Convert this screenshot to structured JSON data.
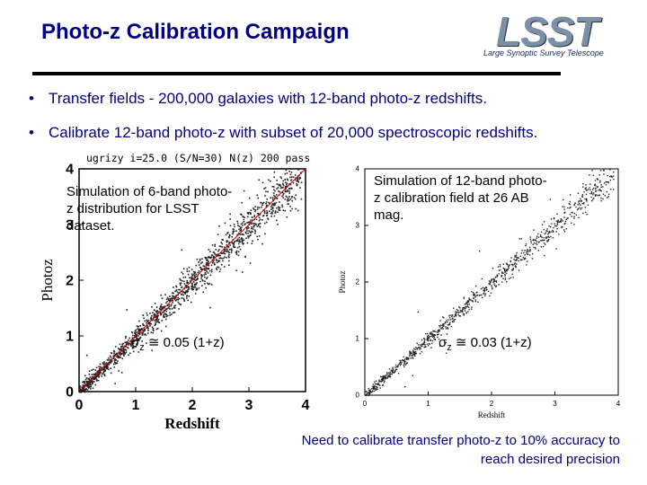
{
  "slide": {
    "title": "Photo-z Calibration Campaign",
    "logo": {
      "word": "LSST",
      "tagline": "Large Synoptic Survey Telescope"
    },
    "bullets": [
      "Transfer fields - 200,000 galaxies with 12-band photo-z redshifts.",
      "Calibrate 12-band photo-z with subset of 20,000 spectroscopic redshifts."
    ],
    "plot_a": {
      "header": "ugrizy i=25.0 (S/N=30) N(z) 200 pass",
      "caption": "Simulation of 6-band photo-z distribution for LSST dataset.",
      "sigma_symbol": "σ",
      "sigma_sub": "z",
      "sigma_text": " ≅ 0.05 (1+z)"
    },
    "plot_b": {
      "caption": "Simulation of 12-band photo-z calibration field at 26 AB mag.",
      "sigma_symbol": "σ",
      "sigma_sub": "z",
      "sigma_text": " ≅ 0.03 (1+z)"
    },
    "note": "Need to calibrate transfer photo-z to 10% accuracy to reach desired precision"
  },
  "chart_data": [
    {
      "type": "scatter",
      "title": "ugrizy i=25.0 (S/N=30) N(z) 200 pass",
      "xlabel": "Redshift",
      "ylabel": "Photoz",
      "xlim": [
        0,
        4
      ],
      "ylim": [
        0,
        4
      ],
      "xticks": [
        "0",
        "1",
        "2",
        "3",
        "4"
      ],
      "yticks": [
        "0",
        "1",
        "2",
        "3",
        "4"
      ],
      "trend": {
        "x": [
          0,
          4
        ],
        "y": [
          0,
          4
        ]
      },
      "scatter_sigma": 0.05
    },
    {
      "type": "scatter",
      "xlabel": "Redshift",
      "ylabel": "Photoz",
      "xlim": [
        0,
        4
      ],
      "ylim": [
        0,
        4
      ],
      "xticks": [
        "0",
        "1",
        "2",
        "3",
        "4"
      ],
      "yticks": [
        "0",
        "1",
        "2",
        "3",
        "4"
      ],
      "trend": {
        "x": [
          0,
          4
        ],
        "y": [
          0,
          4
        ]
      },
      "scatter_sigma": 0.03
    }
  ]
}
